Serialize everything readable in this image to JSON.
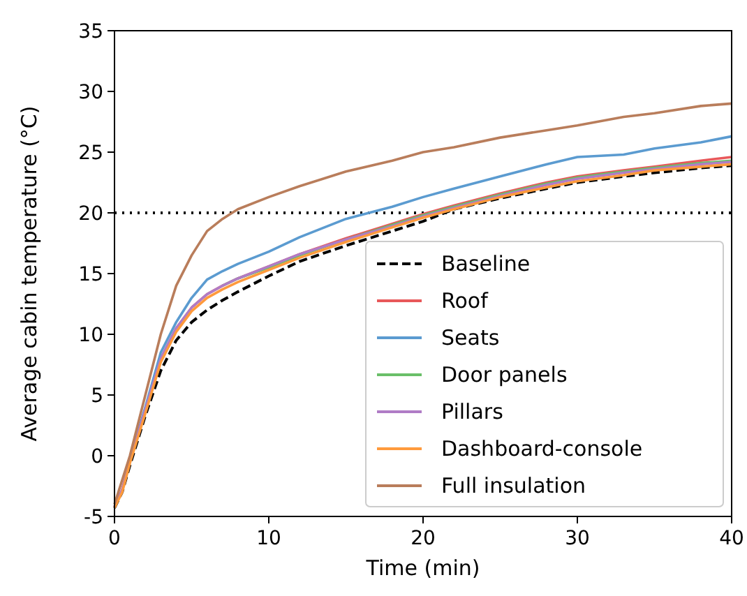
{
  "chart_data": {
    "type": "line",
    "xlabel": "Time (min)",
    "ylabel": "Average cabin temperature (°C)",
    "x": [
      0,
      0.5,
      1,
      2,
      3,
      4,
      5,
      6,
      7,
      8,
      10,
      12,
      15,
      18,
      20,
      22,
      25,
      28,
      30,
      33,
      35,
      38,
      40
    ],
    "xlim": [
      0,
      40
    ],
    "xticks": [
      0,
      10,
      20,
      30,
      40
    ],
    "ylim": [
      -5,
      35
    ],
    "yticks": [
      -5,
      0,
      5,
      10,
      15,
      20,
      25,
      30,
      35
    ],
    "grid": false,
    "legend": "bottom right",
    "ref_lines": [
      {
        "axis": "y",
        "value": 20,
        "label": null,
        "color": "#000000",
        "line_style": "dotted"
      }
    ],
    "series": [
      {
        "name": "Baseline",
        "color": "#000000",
        "line_style": "dashed",
        "values": [
          -4.3,
          -3,
          -0.8,
          3.3,
          7,
          9.5,
          11,
          12,
          12.8,
          13.5,
          14.8,
          16,
          17.3,
          18.5,
          19.3,
          20.3,
          21.2,
          22,
          22.5,
          23,
          23.3,
          23.7,
          23.9
        ]
      },
      {
        "name": "Roof",
        "color": "#e8585a",
        "values": [
          -4.2,
          -2.8,
          -0.4,
          3.8,
          8,
          10.5,
          12.2,
          13.3,
          14,
          14.6,
          15.6,
          16.6,
          17.9,
          19.1,
          19.9,
          20.6,
          21.6,
          22.5,
          23,
          23.5,
          23.8,
          24.3,
          24.6
        ]
      },
      {
        "name": "Seats",
        "color": "#5b9bd0",
        "values": [
          null,
          null,
          -0.3,
          4,
          8.5,
          11,
          13,
          14.5,
          15.2,
          15.8,
          16.8,
          18,
          19.5,
          20.5,
          21.3,
          22,
          23,
          24,
          24.6,
          24.8,
          25.3,
          25.8,
          26.3
        ]
      },
      {
        "name": "Door panels",
        "color": "#6abf69",
        "values": [
          null,
          null,
          null,
          null,
          null,
          null,
          null,
          null,
          14,
          14.6,
          15.5,
          16.5,
          17.8,
          19,
          19.8,
          20.5,
          21.5,
          22.4,
          22.9,
          23.4,
          23.7,
          24.1,
          24.3
        ]
      },
      {
        "name": "Pillars",
        "color": "#b07cc6",
        "values": [
          -4.2,
          -2.8,
          -0.4,
          3.8,
          8,
          10.5,
          12.2,
          13.3,
          14,
          14.6,
          15.6,
          16.6,
          17.8,
          18.9,
          19.7,
          20.4,
          21.4,
          22.3,
          22.8,
          23.3,
          23.6,
          24,
          24.2
        ]
      },
      {
        "name": "Dashboard-console",
        "color": "#ff9a3c",
        "values": [
          -4.3,
          -3,
          -0.6,
          3.5,
          7.7,
          10.2,
          11.9,
          13,
          13.7,
          14.3,
          15.3,
          16.3,
          17.6,
          18.8,
          19.6,
          20.3,
          21.3,
          22.1,
          22.6,
          23.1,
          23.5,
          23.8,
          24
        ]
      },
      {
        "name": "Full insulation",
        "color": "#b97d5b",
        "values": [
          -4,
          -2,
          0,
          5,
          10,
          14,
          16.5,
          18.5,
          19.5,
          20.3,
          21.3,
          22.2,
          23.4,
          24.3,
          25,
          25.4,
          26.2,
          26.8,
          27.2,
          27.9,
          28.2,
          28.8,
          29
        ]
      }
    ]
  }
}
